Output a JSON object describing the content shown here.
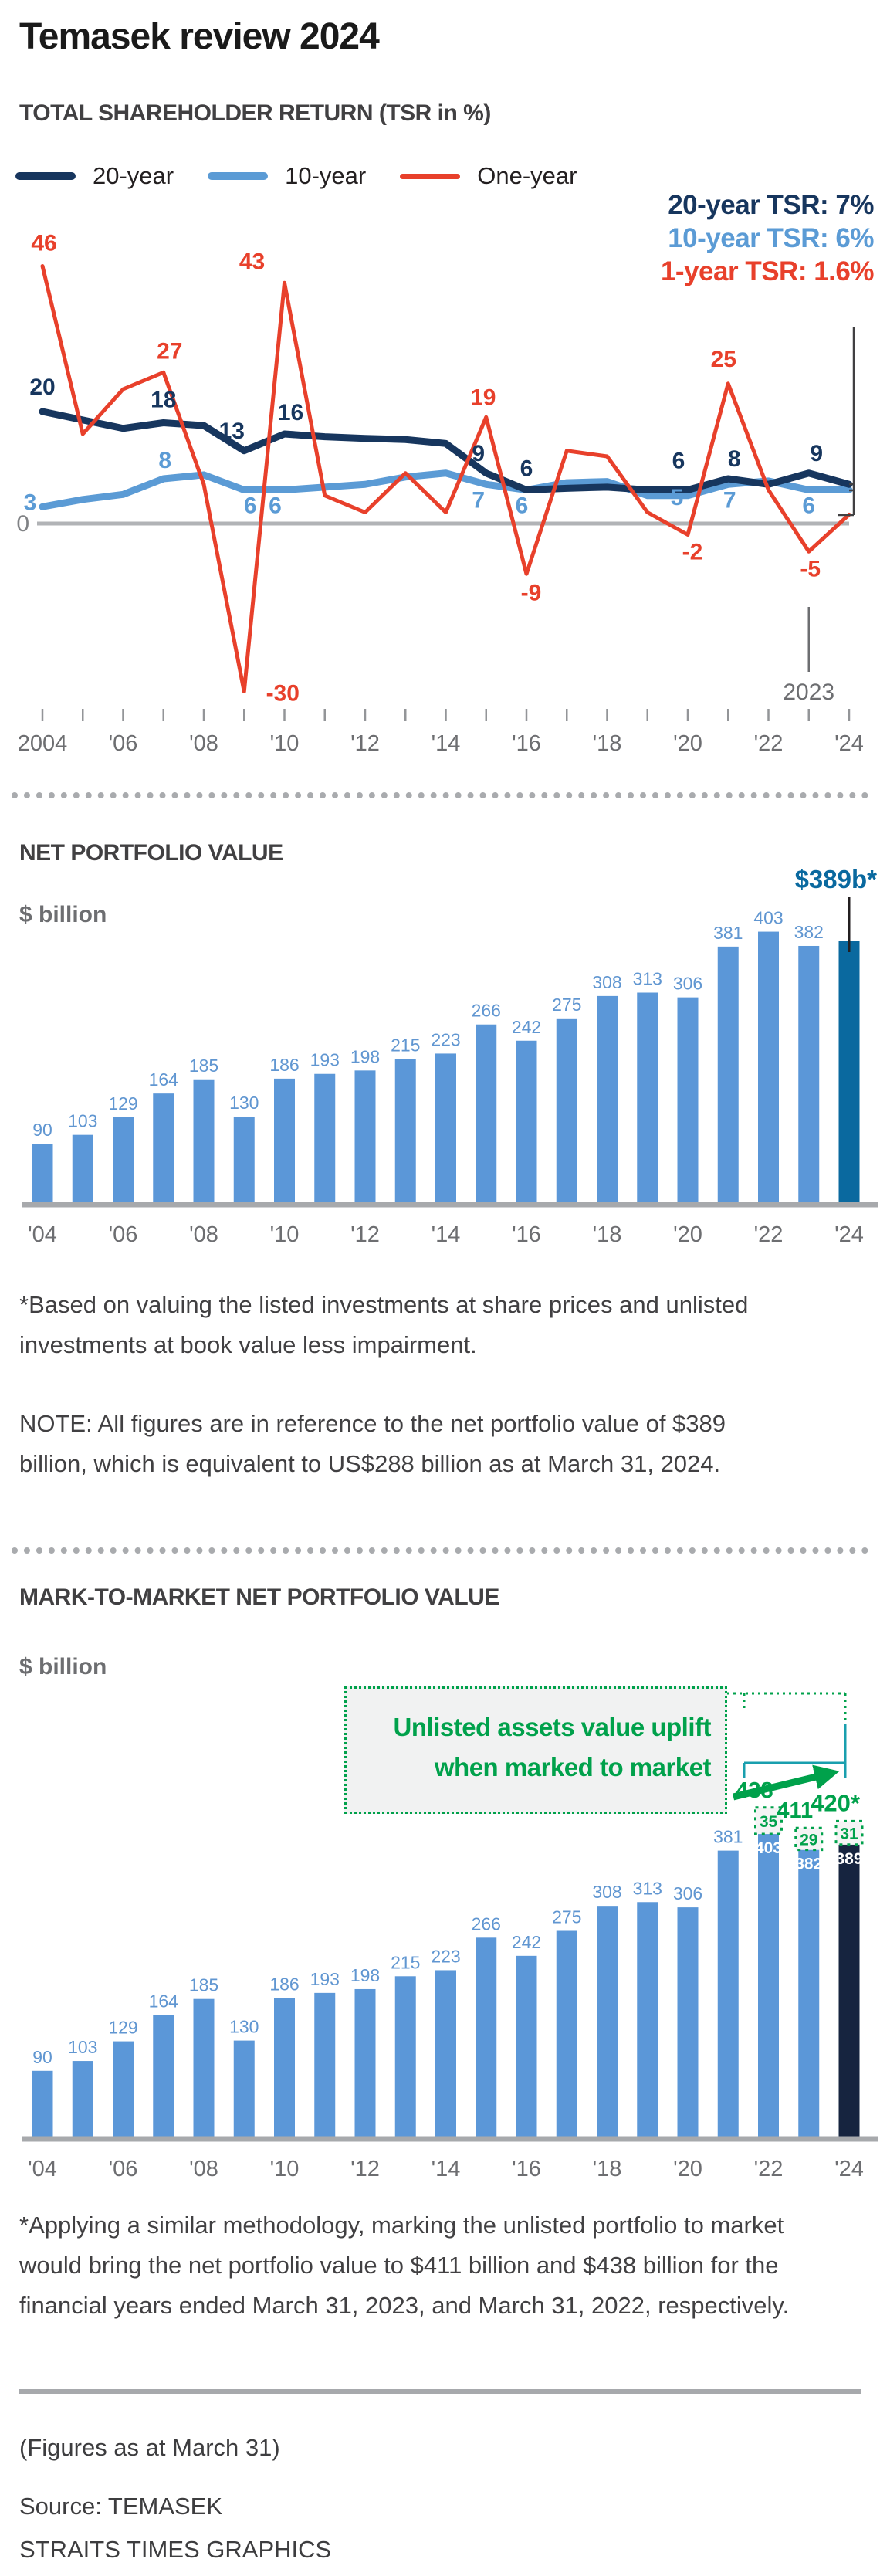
{
  "header": {
    "title": "Temasek review 2024"
  },
  "colors": {
    "navy": "#17365e",
    "blue": "#5b9bd5",
    "red": "#e8402b",
    "bar_blue": "#5b97d8",
    "bar_highlight": "#0a699f",
    "bar_highlight_dark": "#16243f",
    "green": "#00a14b",
    "teal_bracket": "#199fae",
    "axis_grey": "#a7a9ac",
    "zero_grey": "#b1b3b6",
    "tick_grey": "#939598",
    "label_grey": "#6d6e71",
    "value_label_blue": "#6096d1",
    "callout_line": "#231f20"
  },
  "chart_data": [
    {
      "id": "tsr",
      "type": "line",
      "title": "TOTAL SHAREHOLDER RETURN (TSR in %)",
      "legend": [
        {
          "label": "20-year",
          "color": "#17365e"
        },
        {
          "label": "10-year",
          "color": "#5b9bd5"
        },
        {
          "label": "One-year",
          "color": "#e8402b"
        }
      ],
      "annotations": [
        {
          "text": "20-year TSR: 7%",
          "color": "#17365e"
        },
        {
          "text": "10-year TSR: 6%",
          "color": "#5b9bd5"
        },
        {
          "text": "1-year TSR: 1.6%",
          "color": "#e8402b"
        }
      ],
      "years": [
        2004,
        2005,
        2006,
        2007,
        2008,
        2009,
        2010,
        2011,
        2012,
        2013,
        2014,
        2015,
        2016,
        2017,
        2018,
        2019,
        2020,
        2021,
        2022,
        2023,
        2024
      ],
      "x_tick_labels": [
        "2004",
        "'06",
        "'08",
        "'10",
        "'12",
        "'14",
        "'16",
        "'18",
        "'20",
        "'22",
        "'24"
      ],
      "ylim": [
        -33,
        50
      ],
      "zero_label": "0",
      "zero_color": "#b1b3b6",
      "tick_color": "#939598",
      "tick_label_color": "#6d6e71",
      "bracket_color": "#414042",
      "year_callout": {
        "text": "2023",
        "year_index": 19
      },
      "series": [
        {
          "name": "10-year",
          "color": "#5b9bd5",
          "width": 9,
          "values": [
            3,
            4.3,
            5.2,
            8,
            8.7,
            6,
            6,
            6.5,
            7,
            8.3,
            9,
            7,
            6,
            7.3,
            7.5,
            5,
            5,
            7,
            7.6,
            6,
            6
          ],
          "labels": [
            {
              "i": 0,
              "t": "3",
              "dx": -16,
              "dy": 4
            },
            {
              "i": 3,
              "t": "8",
              "dx": 2,
              "dy": -14
            },
            {
              "i": 5,
              "t": "6",
              "dx": 8,
              "dy": 30
            },
            {
              "i": 6,
              "t": "6",
              "dx": -12,
              "dy": 30
            },
            {
              "i": 11,
              "t": "7",
              "dx": -10,
              "dy": 30
            },
            {
              "i": 12,
              "t": "6",
              "dx": -6,
              "dy": 30
            },
            {
              "i": 16,
              "t": "5",
              "dx": -14,
              "dy": 12
            },
            {
              "i": 17,
              "t": "7",
              "dx": 2,
              "dy": 30
            },
            {
              "i": 19,
              "t": "6",
              "dx": 0,
              "dy": 30
            }
          ]
        },
        {
          "name": "20-year",
          "color": "#17365e",
          "width": 9,
          "values": [
            20,
            18.5,
            17,
            18,
            17.5,
            13,
            16,
            15.5,
            15.2,
            15,
            14.3,
            9,
            6,
            6.3,
            6.5,
            6,
            6,
            8,
            7,
            9,
            7
          ],
          "labels": [
            {
              "i": 0,
              "t": "20",
              "dx": 0,
              "dy": -22
            },
            {
              "i": 3,
              "t": "18",
              "dx": 0,
              "dy": -20
            },
            {
              "i": 5,
              "t": "13",
              "dx": -16,
              "dy": -16
            },
            {
              "i": 6,
              "t": "16",
              "dx": 8,
              "dy": -18
            },
            {
              "i": 11,
              "t": "9",
              "dx": -10,
              "dy": -16
            },
            {
              "i": 12,
              "t": "6",
              "dx": 0,
              "dy": -18
            },
            {
              "i": 16,
              "t": "6",
              "dx": -12,
              "dy": -28
            },
            {
              "i": 17,
              "t": "8",
              "dx": 8,
              "dy": -16
            },
            {
              "i": 19,
              "t": "9",
              "dx": 10,
              "dy": -16
            }
          ]
        },
        {
          "name": "One-year",
          "color": "#e8402b",
          "width": 5,
          "values": [
            46,
            16,
            24,
            27,
            7,
            -30,
            43,
            5,
            2,
            9,
            2,
            19,
            -9,
            13,
            12,
            2,
            -2,
            25,
            6,
            -5,
            1.6
          ],
          "labels": [
            {
              "i": 0,
              "t": "46",
              "dx": 2,
              "dy": -20
            },
            {
              "i": 3,
              "t": "27",
              "dx": 8,
              "dy": -18
            },
            {
              "i": 5,
              "t": "-30",
              "dx": 50,
              "dy": 12
            },
            {
              "i": 6,
              "t": "43",
              "dx": -42,
              "dy": -18
            },
            {
              "i": 11,
              "t": "19",
              "dx": -4,
              "dy": -16
            },
            {
              "i": 12,
              "t": "-9",
              "dx": 6,
              "dy": 34
            },
            {
              "i": 16,
              "t": "-2",
              "dx": 6,
              "dy": 32
            },
            {
              "i": 17,
              "t": "25",
              "dx": -6,
              "dy": -22
            },
            {
              "i": 19,
              "t": "-5",
              "dx": 2,
              "dy": 32
            }
          ]
        }
      ]
    },
    {
      "id": "npv",
      "type": "bar",
      "title": "NET PORTFOLIO VALUE",
      "unit": "$ billion",
      "x_tick_labels": [
        "'04",
        "'06",
        "'08",
        "'10",
        "'12",
        "'14",
        "'16",
        "'18",
        "'20",
        "'22",
        "'24"
      ],
      "values": [
        90,
        103,
        129,
        164,
        185,
        130,
        186,
        193,
        198,
        215,
        223,
        266,
        242,
        275,
        308,
        313,
        306,
        381,
        403,
        382,
        389
      ],
      "bar_color": "#5b97d8",
      "highlight_index": 20,
      "highlight_color": "#0a699f",
      "highlight_label": "$389b*",
      "label_color": "#6096d1",
      "axis_color": "#a7a9ac",
      "tick_label_color": "#6d6e71",
      "callout_line_color": "#231f20"
    },
    {
      "id": "mtm",
      "type": "stacked-bar",
      "title": "MARK-TO-MARKET NET PORTFOLIO VALUE",
      "unit": "$ billion",
      "callout_line1": "Unlisted assets value uplift",
      "callout_line2": "when marked to market",
      "x_tick_labels": [
        "'04",
        "'06",
        "'08",
        "'10",
        "'12",
        "'14",
        "'16",
        "'18",
        "'20",
        "'22",
        "'24"
      ],
      "values": [
        90,
        103,
        129,
        164,
        185,
        130,
        186,
        193,
        198,
        215,
        223,
        266,
        242,
        275,
        308,
        313,
        306,
        381,
        403,
        382,
        389
      ],
      "uplifts": [
        {
          "index": 18,
          "value": 35,
          "base_label": "403",
          "total_label": "438"
        },
        {
          "index": 19,
          "value": 29,
          "base_label": "382",
          "total_label": "411"
        },
        {
          "index": 20,
          "value": 31,
          "base_label": "389",
          "total_label": "420*"
        }
      ],
      "bar_color": "#5b97d8",
      "highlight_index": 20,
      "highlight_color": "#16243f",
      "label_color": "#6096d1",
      "green": "#00a14b",
      "bracket_color": "#199fae",
      "axis_color": "#a7a9ac",
      "tick_label_color": "#6d6e71"
    }
  ],
  "notes": {
    "npv_footnote": "*Based on valuing the listed investments at share prices and unlisted investments at book value less impairment.",
    "npv_note": "NOTE: All figures are in reference to the net portfolio value of $389 billion, which is equivalent to US$288 billion as at March 31, 2024.",
    "mtm_footnote": "*Applying a similar methodology, marking the unlisted portfolio to market would bring the net portfolio value to $411 billion and $438 billion for the financial years ended March 31, 2023, and March 31, 2022, respectively."
  },
  "footer": {
    "figures": "(Figures as at March 31)",
    "source": "Source: TEMASEK",
    "credit": "STRAITS TIMES GRAPHICS"
  }
}
